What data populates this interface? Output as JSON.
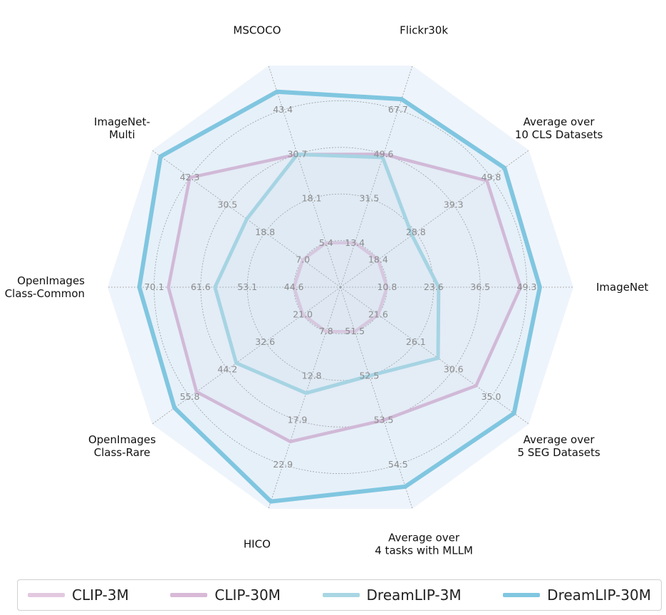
{
  "chart_data": {
    "type": "radar",
    "axes": [
      {
        "label": [
          "ImageNet"
        ],
        "ticks": [
          "10.8",
          "23.6",
          "36.5",
          "49.3"
        ]
      },
      {
        "label": [
          "Average over",
          "10 CLS Datasets"
        ],
        "ticks": [
          "18.4",
          "28.8",
          "39.3",
          "49.8"
        ]
      },
      {
        "label": [
          "Flickr30k"
        ],
        "ticks": [
          "13.4",
          "31.5",
          "49.6",
          "67.7"
        ]
      },
      {
        "label": [
          "MSCOCO"
        ],
        "ticks": [
          "5.4",
          "18.1",
          "30.7",
          "43.4"
        ]
      },
      {
        "label": [
          "ImageNet-",
          "Multi"
        ],
        "ticks": [
          "7.0",
          "18.8",
          "30.5",
          "42.3"
        ]
      },
      {
        "label": [
          "OpenImages",
          "Class-Common"
        ],
        "ticks": [
          "44.6",
          "53.1",
          "61.6",
          "70.1"
        ]
      },
      {
        "label": [
          "OpenImages",
          "Class-Rare"
        ],
        "ticks": [
          "21.0",
          "32.6",
          "44.2",
          "55.8"
        ]
      },
      {
        "label": [
          "HICO"
        ],
        "ticks": [
          "7.8",
          "12.8",
          "17.9",
          "22.9"
        ]
      },
      {
        "label": [
          "Average over",
          "4 tasks with MLLM"
        ],
        "ticks": [
          "51.5",
          "52.5",
          "53.5",
          "54.5"
        ]
      },
      {
        "label": [
          "Average over",
          "5 SEG Datasets"
        ],
        "ticks": [
          "21.6",
          "26.1",
          "30.6",
          "35.0"
        ]
      }
    ],
    "series": [
      {
        "name": "CLIP-3M",
        "color": "#e2c9e0",
        "values": [
          10.8,
          18.4,
          13.4,
          5.4,
          7.0,
          44.6,
          21.0,
          7.8,
          51.5,
          21.6
        ]
      },
      {
        "name": "CLIP-30M",
        "color": "#d8b9d7",
        "values": [
          47.6,
          48.6,
          49.6,
          30.7,
          42.3,
          67.5,
          53.7,
          20.3,
          53.5,
          33.2
        ]
      },
      {
        "name": "DreamLIP-3M",
        "color": "#a9d6e3",
        "values": [
          25.0,
          27.8,
          48.3,
          30.7,
          24.5,
          59.0,
          41.5,
          14.8,
          52.5,
          28.7
        ]
      },
      {
        "name": "DreamLIP-30M",
        "color": "#80c6e0",
        "values": [
          52.9,
          53.5,
          72.1,
          48.6,
          51.4,
          72.8,
          60.5,
          27.1,
          55.0,
          37.7
        ]
      }
    ],
    "rlevels": 4,
    "grid": true,
    "legend": "bottom"
  }
}
